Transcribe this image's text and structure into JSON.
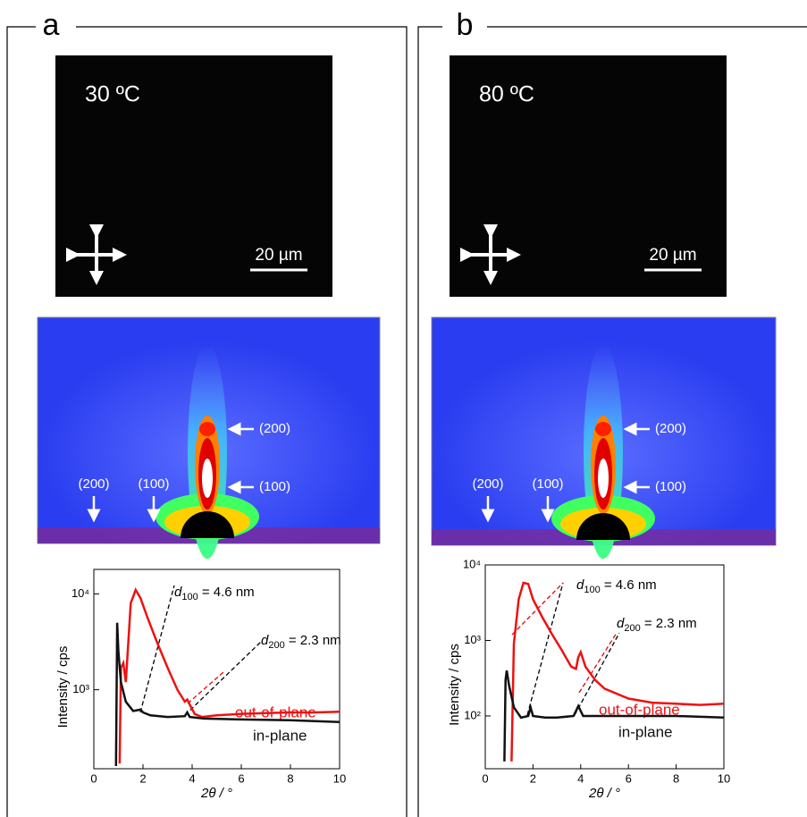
{
  "panels": [
    {
      "letter": "a",
      "temperature": "30 ºC",
      "scale": "20 µm",
      "peaks_vertical": [
        "(200)",
        "(100)"
      ],
      "peaks_inplane": [
        "(200)",
        "(100)"
      ]
    },
    {
      "letter": "b",
      "temperature": "80 ºC",
      "scale": "20 µm",
      "peaks_vertical": [
        "(200)",
        "(100)"
      ],
      "peaks_inplane": [
        "(200)",
        "(100)"
      ]
    }
  ],
  "chart_data": [
    {
      "type": "line",
      "xlabel": "2θ / °",
      "ylabel": "Intensity / cps",
      "log_y": true,
      "xlim": [
        0,
        10
      ],
      "xticks": [
        0,
        2,
        4,
        6,
        8,
        10
      ],
      "ylim": [
        150,
        18000
      ],
      "yticks": [
        {
          "value": 1000,
          "label": "10³"
        },
        {
          "value": 10000,
          "label": "10⁴"
        }
      ],
      "annotations": [
        {
          "symbol": "d",
          "sub": "100",
          "text": " = 4.6 nm"
        },
        {
          "symbol": "d",
          "sub": "200",
          "text": " = 2.3 nm"
        }
      ],
      "series": [
        {
          "name": "out-of-plane",
          "color": "#ee1111",
          "x": [
            1.05,
            1.1,
            1.2,
            1.3,
            1.5,
            1.7,
            1.9,
            2.2,
            2.6,
            3.0,
            3.4,
            3.7,
            3.8,
            3.9,
            4.1,
            4.4,
            5,
            6,
            7,
            8,
            9,
            10
          ],
          "values": [
            170,
            1700,
            1900,
            1200,
            8000,
            11000,
            9000,
            5500,
            3000,
            1700,
            1000,
            750,
            790,
            700,
            560,
            520,
            540,
            560,
            570,
            580,
            580,
            590
          ]
        },
        {
          "name": "in-plane",
          "color": "#111111",
          "x": [
            0.9,
            0.95,
            1.0,
            1.1,
            1.3,
            1.6,
            1.9,
            2.0,
            2.3,
            3,
            3.7,
            3.8,
            3.9,
            4.5,
            6,
            8,
            10
          ],
          "values": [
            160,
            5000,
            2500,
            1200,
            750,
            600,
            620,
            580,
            540,
            520,
            530,
            580,
            520,
            500,
            490,
            480,
            460
          ]
        }
      ]
    },
    {
      "type": "line",
      "xlabel": "2θ / °",
      "ylabel": "Intensity / cps",
      "log_y": true,
      "xlim": [
        0,
        10
      ],
      "xticks": [
        0,
        2,
        4,
        6,
        8,
        10
      ],
      "ylim": [
        20,
        10000
      ],
      "yticks": [
        {
          "value": 100,
          "label": "10²"
        },
        {
          "value": 1000,
          "label": "10³"
        },
        {
          "value": 10000,
          "label": "10⁴"
        }
      ],
      "annotations": [
        {
          "symbol": "d",
          "sub": "100",
          "text": " = 4.6 nm"
        },
        {
          "symbol": "d",
          "sub": "200",
          "text": " = 2.3 nm"
        }
      ],
      "series": [
        {
          "name": "out-of-plane",
          "color": "#ee1111",
          "x": [
            1.1,
            1.2,
            1.4,
            1.6,
            1.8,
            2.0,
            2.4,
            2.8,
            3.2,
            3.6,
            3.8,
            3.9,
            4.0,
            4.2,
            4.6,
            5,
            6,
            7,
            8,
            9,
            10
          ],
          "values": [
            25,
            900,
            3500,
            5800,
            5600,
            3500,
            2000,
            1200,
            750,
            450,
            420,
            600,
            700,
            450,
            300,
            230,
            170,
            150,
            145,
            140,
            145
          ]
        },
        {
          "name": "in-plane",
          "color": "#111111",
          "x": [
            0.8,
            0.85,
            0.9,
            1.0,
            1.2,
            1.5,
            1.8,
            1.9,
            2.0,
            2.5,
            3,
            3.7,
            3.9,
            4.1,
            5,
            6,
            8,
            10
          ],
          "values": [
            25,
            300,
            400,
            250,
            130,
            95,
            100,
            130,
            100,
            95,
            95,
            100,
            135,
            100,
            100,
            100,
            100,
            95
          ]
        }
      ]
    }
  ]
}
